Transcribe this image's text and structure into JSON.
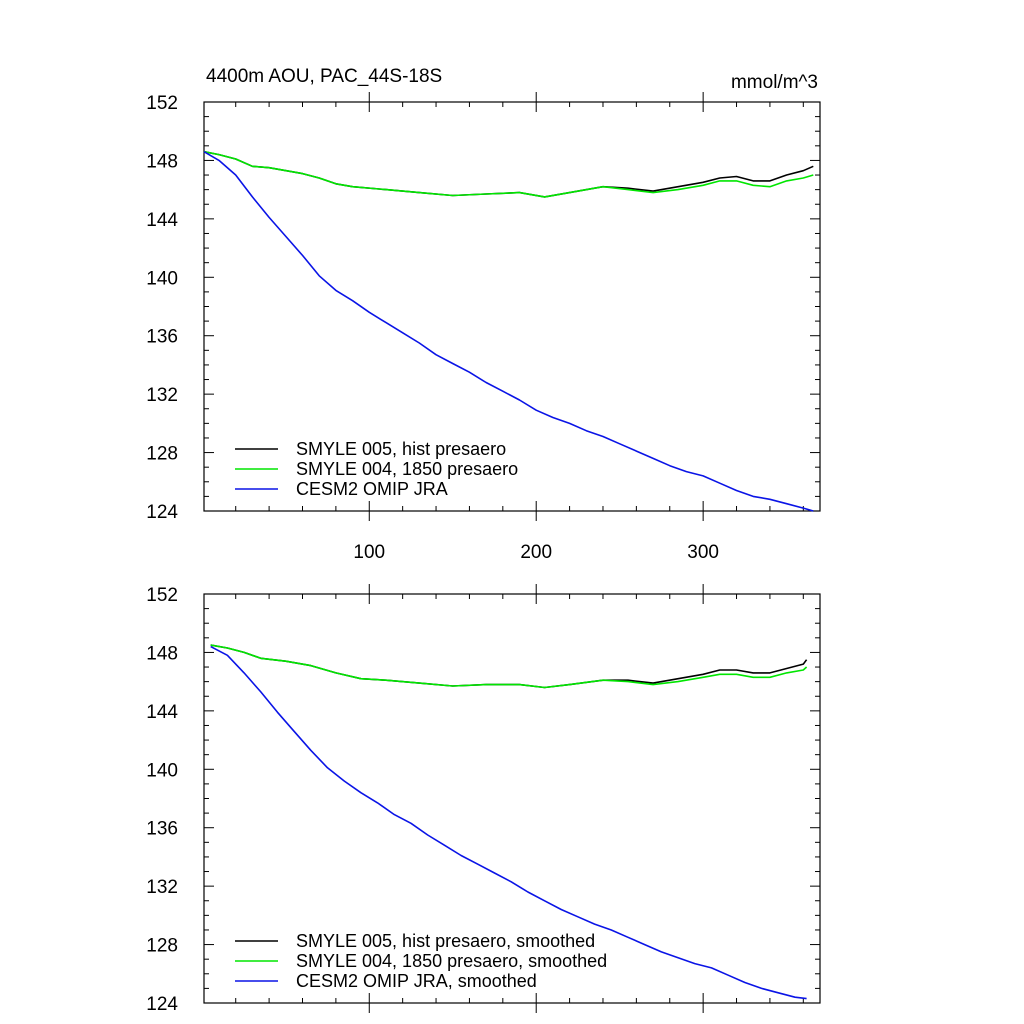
{
  "chart_data": [
    {
      "type": "line",
      "title": "4400m AOU, PAC_44S-18S",
      "units_label": "mmol/m^3",
      "xlim": [
        1,
        370
      ],
      "ylim": [
        124,
        152
      ],
      "xticks": [
        100,
        200,
        300
      ],
      "yticks": [
        124,
        128,
        132,
        136,
        140,
        144,
        148,
        152
      ],
      "x_tick_labels_shown": true,
      "grid": false,
      "legend_position": "bottom-left",
      "series": [
        {
          "name": "SMYLE 005, hist presaero",
          "color": "#000000",
          "x": [
            1,
            10,
            20,
            30,
            40,
            60,
            70,
            80,
            90,
            110,
            130,
            150,
            170,
            190,
            205,
            220,
            240,
            255,
            270,
            285,
            300,
            310,
            320,
            330,
            340,
            350,
            360,
            366
          ],
          "values": [
            148.6,
            148.4,
            148.1,
            147.6,
            147.5,
            147.1,
            146.8,
            146.4,
            146.2,
            146.0,
            145.8,
            145.6,
            145.7,
            145.8,
            145.5,
            145.8,
            146.2,
            146.1,
            145.9,
            146.2,
            146.5,
            146.8,
            146.9,
            146.6,
            146.6,
            147.0,
            147.3,
            147.6
          ]
        },
        {
          "name": "SMYLE 004, 1850 presaero",
          "color": "#00e600",
          "x": [
            1,
            10,
            20,
            30,
            40,
            60,
            70,
            80,
            90,
            110,
            130,
            150,
            170,
            190,
            205,
            220,
            240,
            255,
            270,
            285,
            300,
            310,
            320,
            330,
            340,
            350,
            360,
            366
          ],
          "values": [
            148.6,
            148.4,
            148.1,
            147.6,
            147.5,
            147.1,
            146.8,
            146.4,
            146.2,
            146.0,
            145.8,
            145.6,
            145.7,
            145.8,
            145.5,
            145.8,
            146.2,
            146.0,
            145.8,
            146.0,
            146.3,
            146.6,
            146.6,
            146.3,
            146.2,
            146.6,
            146.8,
            147.0
          ]
        },
        {
          "name": "CESM2 OMIP JRA",
          "color": "#0a14e6",
          "x": [
            1,
            10,
            20,
            30,
            40,
            50,
            60,
            70,
            80,
            90,
            100,
            110,
            120,
            130,
            140,
            150,
            160,
            170,
            180,
            190,
            200,
            210,
            220,
            230,
            240,
            250,
            260,
            270,
            280,
            290,
            300,
            310,
            320,
            330,
            340,
            350,
            360,
            366
          ],
          "values": [
            148.6,
            148.0,
            147.0,
            145.5,
            144.1,
            142.8,
            141.5,
            140.1,
            139.1,
            138.4,
            137.6,
            136.9,
            136.2,
            135.5,
            134.7,
            134.1,
            133.5,
            132.8,
            132.2,
            131.6,
            130.9,
            130.4,
            130.0,
            129.5,
            129.1,
            128.6,
            128.1,
            127.6,
            127.1,
            126.7,
            126.4,
            125.9,
            125.4,
            125.0,
            124.8,
            124.5,
            124.2,
            124.0
          ]
        }
      ]
    },
    {
      "type": "line",
      "title": "",
      "xlim": [
        1,
        370
      ],
      "ylim": [
        124,
        152
      ],
      "xticks": [
        100,
        200,
        300
      ],
      "yticks": [
        124,
        128,
        132,
        136,
        140,
        144,
        148,
        152
      ],
      "x_tick_labels_shown": false,
      "grid": false,
      "legend_position": "bottom-left",
      "series": [
        {
          "name": "SMYLE 005, hist presaero, smoothed",
          "color": "#000000",
          "x": [
            5,
            15,
            25,
            35,
            50,
            65,
            80,
            95,
            110,
            130,
            150,
            170,
            190,
            205,
            220,
            240,
            255,
            270,
            285,
            300,
            310,
            320,
            330,
            340,
            350,
            360,
            362
          ],
          "values": [
            148.5,
            148.3,
            148.0,
            147.6,
            147.4,
            147.1,
            146.6,
            146.2,
            146.1,
            145.9,
            145.7,
            145.8,
            145.8,
            145.6,
            145.8,
            146.1,
            146.1,
            145.9,
            146.2,
            146.5,
            146.8,
            146.8,
            146.6,
            146.6,
            146.9,
            147.2,
            147.5
          ]
        },
        {
          "name": "SMYLE 004, 1850 presaero, smoothed",
          "color": "#00e600",
          "x": [
            5,
            15,
            25,
            35,
            50,
            65,
            80,
            95,
            110,
            130,
            150,
            170,
            190,
            205,
            220,
            240,
            255,
            270,
            285,
            300,
            310,
            320,
            330,
            340,
            350,
            360,
            362
          ],
          "values": [
            148.5,
            148.3,
            148.0,
            147.6,
            147.4,
            147.1,
            146.6,
            146.2,
            146.1,
            145.9,
            145.7,
            145.8,
            145.8,
            145.6,
            145.8,
            146.1,
            146.0,
            145.8,
            146.0,
            146.3,
            146.5,
            146.5,
            146.3,
            146.3,
            146.6,
            146.8,
            147.0
          ]
        },
        {
          "name": "CESM2 OMIP JRA, smoothed",
          "color": "#0a14e6",
          "x": [
            5,
            15,
            25,
            35,
            45,
            55,
            65,
            75,
            85,
            95,
            105,
            115,
            125,
            135,
            145,
            155,
            165,
            175,
            185,
            195,
            205,
            215,
            225,
            235,
            245,
            255,
            265,
            275,
            285,
            295,
            305,
            315,
            325,
            335,
            345,
            355,
            362
          ],
          "values": [
            148.4,
            147.8,
            146.6,
            145.3,
            143.9,
            142.6,
            141.3,
            140.1,
            139.2,
            138.4,
            137.7,
            136.9,
            136.3,
            135.5,
            134.8,
            134.1,
            133.5,
            132.9,
            132.3,
            131.6,
            131.0,
            130.4,
            129.9,
            129.4,
            129.0,
            128.5,
            128.0,
            127.5,
            127.1,
            126.7,
            126.4,
            125.9,
            125.4,
            125.0,
            124.7,
            124.4,
            124.3
          ]
        }
      ]
    }
  ]
}
